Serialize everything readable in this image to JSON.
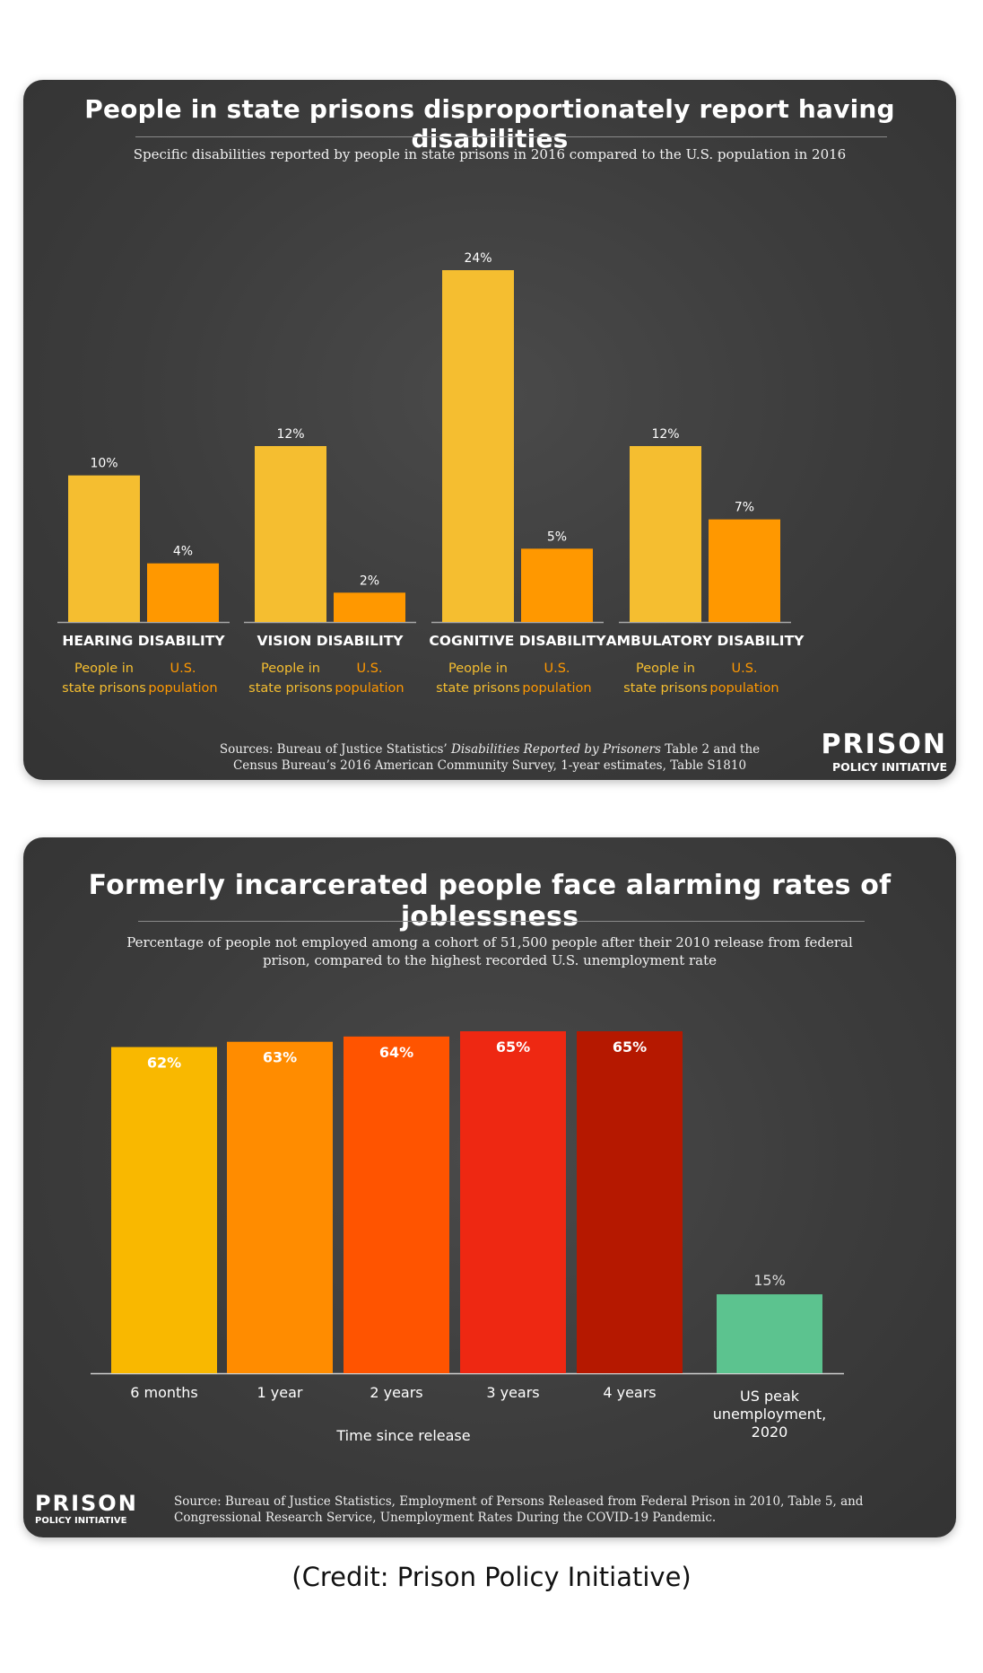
{
  "chart_data": [
    {
      "type": "bar",
      "title": "People in state prisons disproportionately report having disabilities",
      "subtitle": "Specific disabilities reported by people in state prisons in 2016 compared to the U.S. population in 2016",
      "categories": [
        "HEARING DISABILITY",
        "VISION DISABILITY",
        "COGNITIVE DISABILITY",
        "AMBULATORY DISABILITY"
      ],
      "series": [
        {
          "name": "People in state prisons",
          "values": [
            10,
            12,
            24,
            12
          ],
          "labels": [
            "10%",
            "12%",
            "24%",
            "12%"
          ],
          "color": "#F5BE30"
        },
        {
          "name": "U.S. population",
          "values": [
            4,
            2,
            5,
            7
          ],
          "labels": [
            "4%",
            "2%",
            "5%",
            "7%"
          ],
          "color": "#FF9800"
        }
      ],
      "ylim": [
        0,
        24
      ],
      "grid": false,
      "source_prefix": "Sources: Bureau of Justice Statistics’ ",
      "source_italic": "Disabilities Reported by Prisoners",
      "source_suffix": " Table 2 and the",
      "source_line2": "Census Bureau’s 2016 American Community Survey, 1-year estimates, Table S1810"
    },
    {
      "type": "bar",
      "title": "Formerly incarcerated people face alarming rates of joblessness",
      "subtitle_line1": "Percentage of people not employed among a cohort of 51,500 people after their 2010 release from federal",
      "subtitle_line2": "prison, compared to the highest recorded U.S. unemployment rate",
      "categories": [
        "6 months",
        "1 year",
        "2 years",
        "3 years",
        "4 years",
        "US peak unemployment, 2020"
      ],
      "category_lines": [
        [
          "6 months"
        ],
        [
          "1 year"
        ],
        [
          "2 years"
        ],
        [
          "3 years"
        ],
        [
          "4 years"
        ],
        [
          "US peak",
          "unemployment,",
          "2020"
        ]
      ],
      "values": [
        62,
        63,
        64,
        65,
        65,
        15
      ],
      "labels": [
        "62%",
        "63%",
        "64%",
        "65%",
        "65%",
        "15%"
      ],
      "colors": [
        "#F9B800",
        "#FF8C00",
        "#FF5400",
        "#EE2812",
        "#B51800",
        "#5CC38F"
      ],
      "xlabel": "Time since release",
      "ylim": [
        0,
        65
      ],
      "grid": false,
      "source_line1": "Source: Bureau of Justice Statistics, Employment of Persons Released from Federal Prison in 2010, Table 5, and",
      "source_line2": "Congressional Research Service, Unemployment Rates During the COVID-19 Pandemic."
    }
  ],
  "logo": {
    "big": "PRISON",
    "small": "POLICY INITIATIVE"
  },
  "credit": "(Credit: Prison Policy Initiative)"
}
